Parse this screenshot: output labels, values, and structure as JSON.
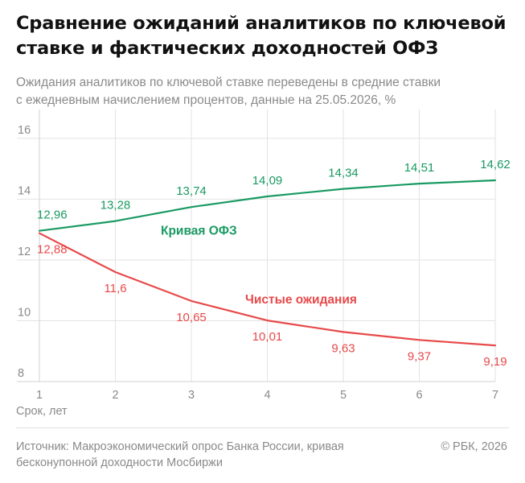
{
  "header": {
    "title_line1": "Сравнение ожиданий аналитиков по ключевой",
    "title_line2": "ставке и фактических доходностей ОФЗ",
    "subtitle_line1": "Ожидания аналитиков по ключевой ставке переведены в средние ставки",
    "subtitle_line2": "с ежедневным начислением процентов, данные на 25.05.2026, %"
  },
  "footer": {
    "source_line1": "Источник: Макроэкономический опрос Банка России, кривая",
    "source_line2": "бесконупонной доходности Мосбиржи",
    "copyright": "© РБК, 2026"
  },
  "chart_data": {
    "type": "line",
    "x": [
      1,
      2,
      3,
      4,
      5,
      6,
      7
    ],
    "xlabel": "Срок, лет",
    "ylabel": "",
    "ylim": [
      8,
      16
    ],
    "yticks": [
      8,
      10,
      12,
      14,
      16
    ],
    "grid": true,
    "series": [
      {
        "name": "Кривая ОФЗ",
        "color": "#1a9a63",
        "values": [
          12.96,
          13.28,
          13.74,
          14.09,
          14.34,
          14.51,
          14.62
        ],
        "labels": [
          "12,96",
          "13,28",
          "13,74",
          "14,09",
          "14,34",
          "14,51",
          "14,62"
        ]
      },
      {
        "name": "Чистые ожидания",
        "color": "#e8494a",
        "values": [
          12.88,
          11.6,
          10.65,
          10.01,
          9.63,
          9.37,
          9.19
        ],
        "labels": [
          "12,88",
          "11,6",
          "10,65",
          "10,01",
          "9,63",
          "9,37",
          "9,19"
        ]
      }
    ]
  }
}
